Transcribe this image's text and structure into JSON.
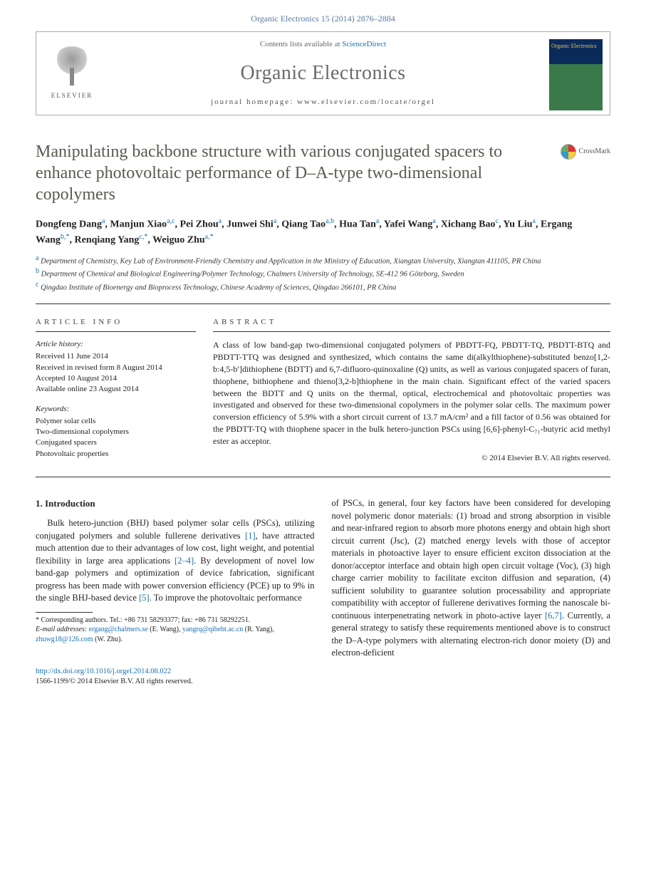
{
  "header": {
    "citation": "Organic Electronics 15 (2014) 2876–2884",
    "contents_prefix": "Contents lists available at ",
    "contents_link": "ScienceDirect",
    "journal_name": "Organic Electronics",
    "homepage_label": "journal homepage: www.elsevier.com/locate/orgel",
    "publisher": "ELSEVIER",
    "cover_text": "Organic Electronics"
  },
  "crossmark": {
    "label": "CrossMark"
  },
  "title": "Manipulating backbone structure with various conjugated spacers to enhance photovoltaic performance of D–A-type two-dimensional copolymers",
  "authors_html": "Dongfeng Dang<sup class='sup'>a</sup>, Manjun Xiao<sup class='sup'>a,c</sup>, Pei Zhou<sup class='sup'>a</sup>, Junwei Shi<sup class='sup'>a</sup>, Qiang Tao<sup class='sup'>a,b</sup>, Hua Tan<sup class='sup'>a</sup>, Yafei Wang<sup class='sup'>a</sup>, Xichang Bao<sup class='sup'>c</sup>, Yu Liu<sup class='sup'>a</sup>, Ergang Wang<sup class='sup'>b,*</sup>, Renqiang Yang<sup class='sup'>c,*</sup>, Weiguo Zhu<sup class='sup'>a,*</sup>",
  "affiliations": [
    {
      "sup": "a",
      "text": "Department of Chemistry, Key Lab of Environment-Friendly Chemistry and Application in the Ministry of Education, Xiangtan University, Xiangtan 411105, PR China"
    },
    {
      "sup": "b",
      "text": "Department of Chemical and Biological Engineering/Polymer Technology, Chalmers University of Technology, SE-412 96 Göteborg, Sweden"
    },
    {
      "sup": "c",
      "text": "Qingdao Institute of Bioenergy and Bioprocess Technology, Chinese Academy of Sciences, Qingdao 266101, PR China"
    }
  ],
  "article_info": {
    "head": "ARTICLE INFO",
    "history_label": "Article history:",
    "history": "Received 11 June 2014\nReceived in revised form 8 August 2014\nAccepted 10 August 2014\nAvailable online 23 August 2014",
    "keywords_label": "Keywords:",
    "keywords": "Polymer solar cells\nTwo-dimensional copolymers\nConjugated spacers\nPhotovoltaic properties"
  },
  "abstract": {
    "head": "ABSTRACT",
    "text": "A class of low band-gap two-dimensional conjugated polymers of PBDTT-FQ, PBDTT-TQ, PBDTT-BTQ and PBDTT-TTQ was designed and synthesized, which contains the same di(alkylthiophene)-substituted benzo[1,2-b:4,5-b′]dithiophene (BDTT) and 6,7-difluoro-quinoxaline (Q) units, as well as various conjugated spacers of furan, thiophene, bithiophene and thieno[3,2-b]thiophene in the main chain. Significant effect of the varied spacers between the BDTT and Q units on the thermal, optical, electrochemical and photovoltaic properties was investigated and observed for these two-dimensional copolymers in the polymer solar cells. The maximum power conversion efficiency of 5.9% with a short circuit current of 13.7 mA/cm² and a fill factor of 0.56 was obtained for the PBDTT-TQ with thiophene spacer in the bulk hetero-junction PSCs using [6,6]-phenyl-C₇₁-butyric acid methyl ester as acceptor.",
    "copyright": "© 2014 Elsevier B.V. All rights reserved."
  },
  "body": {
    "section_head": "1. Introduction",
    "left": "Bulk hetero-junction (BHJ) based polymer solar cells (PSCs), utilizing conjugated polymers and soluble fullerene derivatives [1], have attracted much attention due to their advantages of low cost, light weight, and potential flexibility in large area applications [2–4]. By development of novel low band-gap polymers and optimization of device fabrication, significant progress has been made with power conversion efficiency (PCE) up to 9% in the single BHJ-based device [5]. To improve the photovoltaic performance",
    "right": "of PSCs, in general, four key factors have been considered for developing novel polymeric donor materials: (1) broad and strong absorption in visible and near-infrared region to absorb more photons energy and obtain high short circuit current (Jsc), (2) matched energy levels with those of acceptor materials in photoactive layer to ensure efficient exciton dissociation at the donor/acceptor interface and obtain high open circuit voltage (Voc), (3) high charge carrier mobility to facilitate exciton diffusion and separation, (4) sufficient solubility to guarantee solution processability and appropriate compatibility with acceptor of fullerene derivatives forming the nanoscale bi-continuous interpenetrating network in photo-active layer [6,7]. Currently, a general strategy to satisfy these requirements mentioned above is to construct the D–A-type polymers with alternating electron-rich donor moiety (D) and electron-deficient"
  },
  "footnote": {
    "corr": "* Corresponding authors. Tel.: +86 731 58293377; fax: +86 731 58292251.",
    "emails_label": "E-mail addresses:",
    "emails": "ergang@chalmers.se (E. Wang), yangrq@qibebt.ac.cn (R. Yang), zhuwg18@126.com (W. Zhu)."
  },
  "doi": {
    "url": "http://dx.doi.org/10.1016/j.orgel.2014.08.022",
    "line2": "1566-1199/© 2014 Elsevier B.V. All rights reserved."
  },
  "colors": {
    "link": "#1a6faf",
    "title_gray": "#5a5a50",
    "publisher_orange": "#e67a17"
  }
}
